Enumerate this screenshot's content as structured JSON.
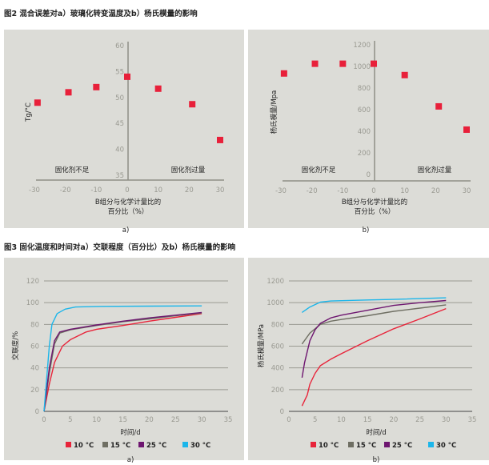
{
  "fig2": {
    "title": "图2   混合误差对a）玻璃化转变温度及b）杨氏模量的影响"
  },
  "fig3": {
    "title": "图3   固化温度和时间对a）交联程度（百分比）及b）杨氏模量的影响"
  },
  "colors": {
    "panel": "#dcdcd7",
    "axis": "#8f8f86",
    "marker": "#e8203a",
    "c10": "#e8243a",
    "c15": "#6f6f63",
    "c25": "#6e1670",
    "c30": "#1cb6ea"
  },
  "chart_data": [
    {
      "type": "scatter",
      "panel": "a)",
      "ylabel": "Tg/°C",
      "xlabel": [
        "B组分与化学计量比的",
        "百分比（%）"
      ],
      "annotations": [
        "固化剂不足",
        "固化剂过量"
      ],
      "xticks": [
        "-30",
        "-20",
        "-10",
        "0",
        "10",
        "20",
        "30"
      ],
      "yticks": [
        "35",
        "40",
        "45",
        "50",
        "55",
        "60"
      ],
      "xlim": [
        -30,
        30
      ],
      "ylim": [
        35,
        60
      ],
      "x": [
        -29,
        -19,
        -10,
        0,
        10,
        21,
        30
      ],
      "y": [
        49,
        51,
        52,
        54,
        51.7,
        48.7,
        41.8
      ]
    },
    {
      "type": "scatter",
      "panel": "b)",
      "ylabel": "杨氏模量/Mpa",
      "xlabel": [
        "B组分与化学计量比的",
        "百分比（%）"
      ],
      "annotations": [
        "固化剂不足",
        "固化剂过量"
      ],
      "xticks": [
        "-30",
        "-20",
        "-10",
        "0",
        "10",
        "20",
        "30"
      ],
      "yticks": [
        "0",
        "200",
        "400",
        "600",
        "800",
        "1000",
        "1200"
      ],
      "xlim": [
        -30,
        30
      ],
      "ylim": [
        0,
        1200
      ],
      "x": [
        -29,
        -19,
        -10,
        0,
        10,
        21,
        30
      ],
      "y": [
        935,
        1025,
        1025,
        1025,
        920,
        630,
        415
      ]
    },
    {
      "type": "line",
      "panel": "a)",
      "ylabel": "交联度/%",
      "xlabel": "时间/d",
      "xticks": [
        "0",
        "5",
        "10",
        "15",
        "20",
        "25",
        "30",
        "35"
      ],
      "yticks": [
        "0",
        "20",
        "40",
        "60",
        "80",
        "100",
        "120"
      ],
      "xlim": [
        0,
        35
      ],
      "ylim": [
        0,
        120
      ],
      "grid": true,
      "legend": "bottom",
      "series": [
        {
          "name": "10 °C",
          "x": [
            0,
            1,
            2,
            3.5,
            5,
            8,
            10,
            15,
            20,
            25,
            30
          ],
          "y": [
            0,
            25,
            45,
            60,
            66,
            73,
            75.5,
            79,
            83,
            86.5,
            90
          ]
        },
        {
          "name": "15 °C",
          "x": [
            0,
            1,
            2,
            3,
            5,
            10,
            15,
            20,
            25,
            30
          ],
          "y": [
            0,
            35,
            62,
            72,
            75,
            79,
            82.5,
            85,
            88,
            90.5
          ]
        },
        {
          "name": "25 °C",
          "x": [
            0,
            1,
            2,
            3,
            5,
            10,
            15,
            20,
            25,
            30
          ],
          "y": [
            0,
            40,
            65,
            73,
            75.5,
            79.5,
            83,
            86,
            88.5,
            91
          ]
        },
        {
          "name": "30 °C",
          "x": [
            0,
            1,
            1.5,
            2.5,
            4,
            6,
            10,
            20,
            30
          ],
          "y": [
            0,
            60,
            80,
            90,
            94,
            96,
            96.5,
            96.8,
            97
          ]
        }
      ]
    },
    {
      "type": "line",
      "panel": "b)",
      "ylabel": "杨氏模量/MPa",
      "xlabel": "时间/d",
      "xticks": [
        "0",
        "5",
        "10",
        "15",
        "20",
        "25",
        "30",
        "35"
      ],
      "yticks": [
        "0",
        "200",
        "400",
        "600",
        "800",
        "1000",
        "1200"
      ],
      "xlim": [
        0,
        35
      ],
      "ylim": [
        0,
        1200
      ],
      "grid": true,
      "legend": "bottom",
      "series": [
        {
          "name": "10 °C",
          "x": [
            2.5,
            3,
            3.5,
            4,
            5,
            6,
            8,
            10,
            15,
            20,
            25,
            30
          ],
          "y": [
            50,
            100,
            150,
            250,
            350,
            420,
            480,
            530,
            650,
            760,
            850,
            945
          ]
        },
        {
          "name": "15 °C",
          "x": [
            2.5,
            4,
            6,
            8,
            10,
            15,
            20,
            25,
            30
          ],
          "y": [
            620,
            720,
            800,
            830,
            845,
            880,
            920,
            950,
            980
          ]
        },
        {
          "name": "25 °C",
          "x": [
            2.5,
            3,
            4,
            5,
            6,
            8,
            10,
            15,
            20,
            25,
            30
          ],
          "y": [
            310,
            450,
            650,
            750,
            810,
            860,
            885,
            930,
            975,
            1000,
            1020
          ]
        },
        {
          "name": "30 °C",
          "x": [
            2.5,
            4,
            6,
            8,
            15,
            20,
            30
          ],
          "y": [
            910,
            960,
            1005,
            1015,
            1025,
            1030,
            1045
          ]
        }
      ]
    }
  ]
}
